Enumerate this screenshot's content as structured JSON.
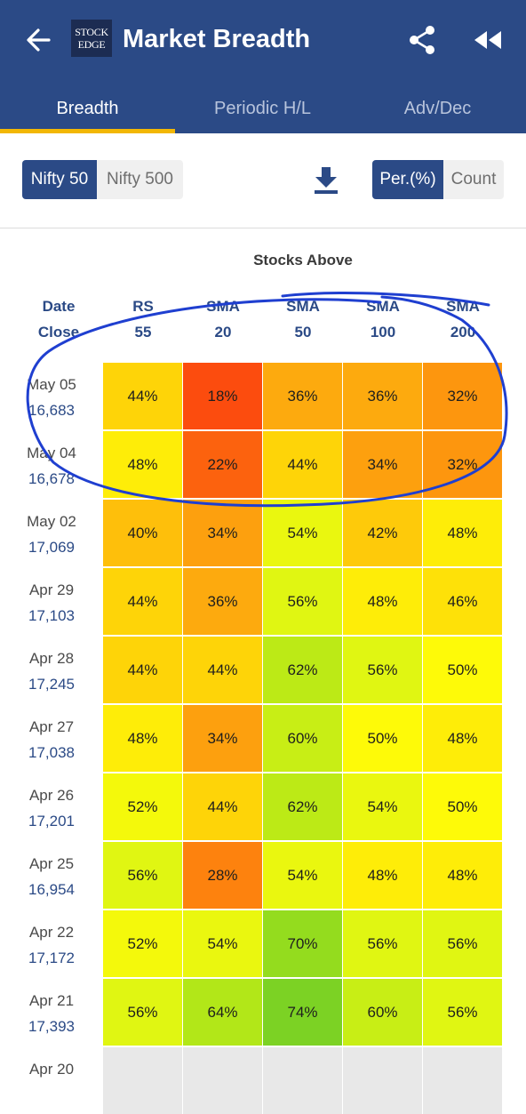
{
  "header": {
    "title": "Market Breadth",
    "logo_lines": [
      "STOCK",
      "EDGE"
    ]
  },
  "tabs": [
    {
      "label": "Breadth",
      "active": true
    },
    {
      "label": "Periodic H/L",
      "active": false
    },
    {
      "label": "Adv/Dec",
      "active": false
    }
  ],
  "index_toggle": [
    {
      "label": "Nifty 50",
      "active": true
    },
    {
      "label": "Nifty 500",
      "active": false
    }
  ],
  "mode_toggle": [
    {
      "label": "Per.(%)",
      "active": true
    },
    {
      "label": "Count",
      "active": false
    }
  ],
  "table": {
    "group_title": "Stocks Above",
    "row_header": [
      "Date",
      "Close"
    ],
    "columns": [
      {
        "top": "RS",
        "bottom": "55"
      },
      {
        "top": "SMA",
        "bottom": "20"
      },
      {
        "top": "SMA",
        "bottom": "50"
      },
      {
        "top": "SMA",
        "bottom": "100"
      },
      {
        "top": "SMA",
        "bottom": "200"
      }
    ],
    "rows": [
      {
        "date": "May 05",
        "close": "16,683",
        "values": [
          "44%",
          "18%",
          "36%",
          "36%",
          "32%"
        ]
      },
      {
        "date": "May 04",
        "close": "16,678",
        "values": [
          "48%",
          "22%",
          "44%",
          "34%",
          "32%"
        ]
      },
      {
        "date": "May 02",
        "close": "17,069",
        "values": [
          "40%",
          "34%",
          "54%",
          "42%",
          "48%"
        ]
      },
      {
        "date": "Apr 29",
        "close": "17,103",
        "values": [
          "44%",
          "36%",
          "56%",
          "48%",
          "46%"
        ]
      },
      {
        "date": "Apr 28",
        "close": "17,245",
        "values": [
          "44%",
          "44%",
          "62%",
          "56%",
          "50%"
        ]
      },
      {
        "date": "Apr 27",
        "close": "17,038",
        "values": [
          "48%",
          "34%",
          "60%",
          "50%",
          "48%"
        ]
      },
      {
        "date": "Apr 26",
        "close": "17,201",
        "values": [
          "52%",
          "44%",
          "62%",
          "54%",
          "50%"
        ]
      },
      {
        "date": "Apr 25",
        "close": "16,954",
        "values": [
          "56%",
          "28%",
          "54%",
          "48%",
          "48%"
        ]
      },
      {
        "date": "Apr 22",
        "close": "17,172",
        "values": [
          "52%",
          "54%",
          "70%",
          "56%",
          "56%"
        ]
      },
      {
        "date": "Apr 21",
        "close": "17,393",
        "values": [
          "56%",
          "64%",
          "74%",
          "60%",
          "56%"
        ]
      },
      {
        "date": "Apr 20",
        "close": "",
        "values": [
          "",
          "",
          "",
          "",
          ""
        ]
      }
    ]
  },
  "colors": {
    "brand": "#2b4a86",
    "tab_indicator": "#f2b705",
    "annotation": "#1f3fd0"
  }
}
